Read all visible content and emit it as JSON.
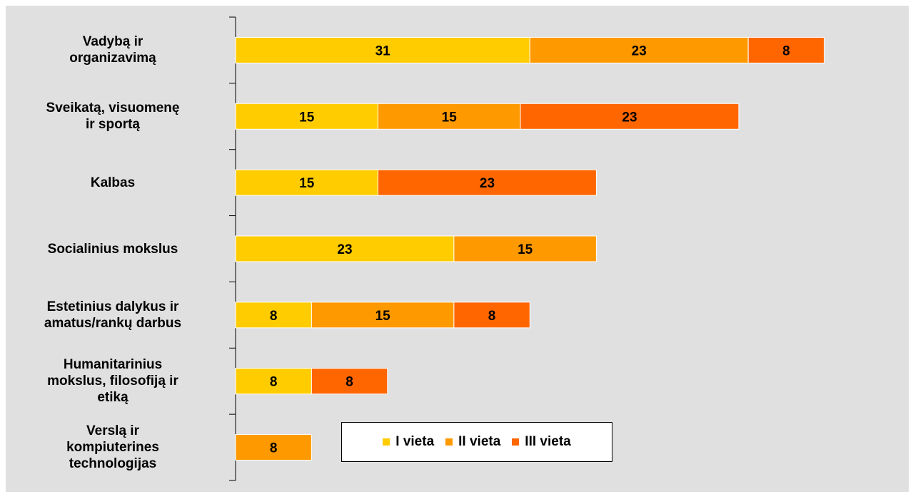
{
  "chart_data": {
    "type": "bar",
    "orientation": "horizontal",
    "stacked": true,
    "title": "",
    "xlabel": "",
    "ylabel": "",
    "categories": [
      "Vadybą ir\norganizavimą",
      "Sveikatą, visuomenę\nir sportą",
      "Kalbas",
      "Socialinius mokslus",
      "Estetinius dalykus ir\namatus/rankų darbus",
      "Humanitarinius\nmokslus, filosofiją ir\netiką",
      "Verslą ir\nkompiuterines\ntechnologijas"
    ],
    "series": [
      {
        "name": "I vieta",
        "color": "#ffcc00",
        "values": [
          31,
          15,
          15,
          23,
          8,
          8,
          0
        ]
      },
      {
        "name": "II vieta",
        "color": "#ff9900",
        "values": [
          23,
          15,
          0,
          15,
          15,
          0,
          8
        ]
      },
      {
        "name": "III vieta",
        "color": "#ff6600",
        "values": [
          8,
          23,
          23,
          0,
          8,
          8,
          0
        ]
      }
    ],
    "xlim": [
      0,
      70
    ],
    "grid": false,
    "data_labels": true,
    "legend_position": "bottom-center"
  }
}
